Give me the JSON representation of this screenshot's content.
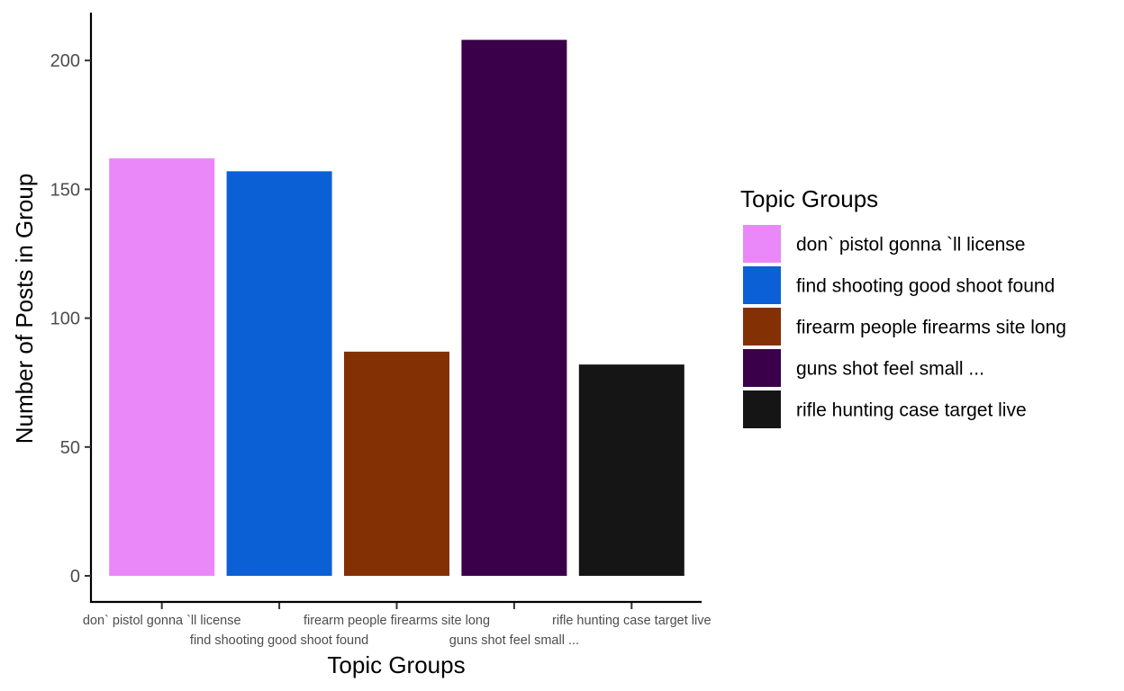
{
  "chart_data": {
    "type": "bar",
    "xlabel": "Topic Groups",
    "ylabel": "Number of Posts in Group",
    "ylim": [
      0,
      218
    ],
    "yticks": [
      0,
      50,
      100,
      150,
      200
    ],
    "grid": false,
    "legend_position": "right",
    "legend_title": "Topic Groups",
    "categories": [
      "don` pistol gonna `ll license",
      "find shooting good shoot found",
      "firearm people firearms site long",
      "guns shot feel small ...",
      "rifle hunting case target live"
    ],
    "values": [
      162,
      157,
      87,
      208,
      82
    ],
    "colors": [
      "#ea88f9",
      "#0c60d6",
      "#843005",
      "#3b004a",
      "#151515"
    ]
  }
}
